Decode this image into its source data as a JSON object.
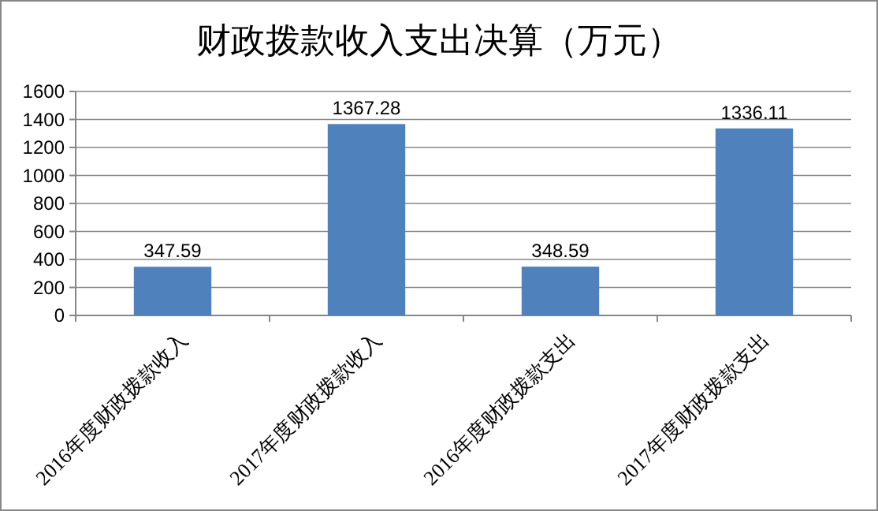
{
  "chart_data": {
    "type": "bar",
    "title": "财政拨款收入支出决算（万元）",
    "categories": [
      "2016年度财政拨款收入",
      "2017年度财政拨款收入",
      "2016年度财政拨款支出",
      "2017年度财政拨款支出"
    ],
    "values": [
      347.59,
      1367.28,
      348.59,
      1336.11
    ],
    "color": "#4f81bd",
    "data_labels": true,
    "ylim": [
      0,
      1600
    ],
    "yticks": [
      0,
      200,
      400,
      600,
      800,
      1000,
      1200,
      1400,
      1600
    ],
    "grid": "y"
  }
}
